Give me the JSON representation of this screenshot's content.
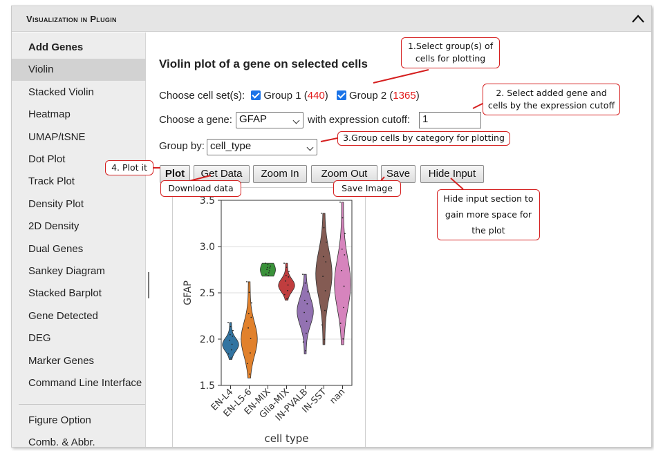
{
  "header": {
    "title": "Visualization in Plugin",
    "collapse_icon": "chevron-up-icon"
  },
  "sidebar": {
    "items": [
      {
        "label": "Add Genes",
        "bold": true
      },
      {
        "label": "Violin",
        "active": true
      },
      {
        "label": "Stacked Violin"
      },
      {
        "label": "Heatmap"
      },
      {
        "label": "UMAP/tSNE"
      },
      {
        "label": "Dot Plot"
      },
      {
        "label": "Track Plot"
      },
      {
        "label": "Density Plot"
      },
      {
        "label": "2D Density"
      },
      {
        "label": "Dual Genes"
      },
      {
        "label": "Sankey Diagram"
      },
      {
        "label": "Stacked Barplot"
      },
      {
        "label": "Gene Detected"
      },
      {
        "label": "DEG"
      },
      {
        "label": "Marker Genes"
      },
      {
        "label": "Command Line Interface"
      }
    ],
    "bottom_items": [
      {
        "label": "Figure Option"
      },
      {
        "label": "Comb. & Abbr."
      }
    ]
  },
  "main": {
    "title": "Violin plot of a gene on selected cells",
    "cellset": {
      "label": "Choose cell set(s):",
      "group1": {
        "name": "Group 1 (",
        "count": "440",
        "close": ")"
      },
      "group2": {
        "name": "Group 2 (",
        "count": "1365",
        "close": ")"
      }
    },
    "gene": {
      "label": "Choose a gene:",
      "value": "GFAP",
      "cutoff_label": "with expression cutoff:",
      "cutoff_value": "1"
    },
    "groupby": {
      "label": "Group by:",
      "value": "cell_type"
    },
    "buttons": {
      "plot": "Plot",
      "get_data": "Get Data",
      "zoom_in": "Zoom In",
      "zoom_out": "Zoom Out",
      "save": "Save",
      "hide_input": "Hide Input"
    }
  },
  "annotations": {
    "a1_line1": "1.Select group(s) of",
    "a1_line2": "cells for plotting",
    "a2_line1": "2. Select added gene and",
    "a2_line2": "cells by the expression cutoff",
    "a3": "3.Group cells by category for plotting",
    "a4": "4. Plot it",
    "download": "Download data",
    "save_image": "Save Image",
    "hide_line1": "Hide input section to",
    "hide_line2": "gain more space for",
    "hide_line3": "the plot"
  },
  "colors": {
    "accent_red": "#e21b1b",
    "checkbox_blue": "#1a73e8"
  },
  "chart_data": {
    "type": "violin",
    "xlabel": "cell type",
    "ylabel": "GFAP",
    "ylim": [
      1.5,
      3.5
    ],
    "yticks": [
      "1.5",
      "2.0",
      "2.5",
      "3.0",
      "3.5"
    ],
    "categories": [
      "EN-L4",
      "EN-L5-6",
      "EN-MIX",
      "Glia-MIX",
      "IN-PVALB",
      "IN-SST",
      "nan"
    ],
    "series": [
      {
        "category": "EN-L4",
        "min": 1.78,
        "max": 2.18,
        "median": 1.94,
        "color": "#3274a1"
      },
      {
        "category": "EN-L5-6",
        "min": 1.58,
        "max": 2.62,
        "median": 2.0,
        "color": "#e1812c"
      },
      {
        "category": "EN-MIX",
        "min": 2.68,
        "max": 2.82,
        "median": 2.72,
        "color": "#3a923a"
      },
      {
        "category": "Glia-MIX",
        "min": 2.42,
        "max": 2.82,
        "median": 2.58,
        "color": "#c03d3e"
      },
      {
        "category": "IN-PVALB",
        "min": 1.84,
        "max": 2.7,
        "median": 2.3,
        "color": "#9372b2"
      },
      {
        "category": "IN-SST",
        "min": 1.94,
        "max": 3.36,
        "median": 2.7,
        "color": "#845b53"
      },
      {
        "category": "nan",
        "min": 1.94,
        "max": 3.48,
        "median": 2.6,
        "color": "#d684bd"
      }
    ],
    "grid": "horizontal"
  }
}
